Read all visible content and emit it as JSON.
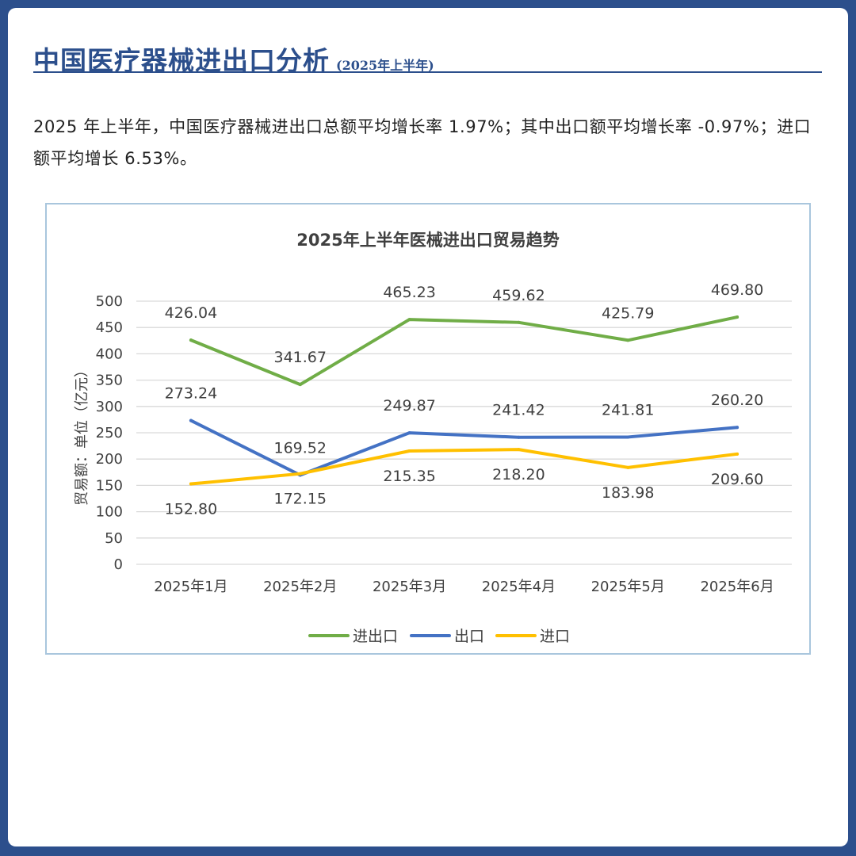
{
  "header": {
    "title": "中国医疗器械进出口分析",
    "subtitle": "(2025年上半年)"
  },
  "summary": {
    "text": "2025 年上半年，中国医疗器械进出口总额平均增长率 1.97%；其中出口额平均增长率 -0.97%；进口额平均增长 6.53%。"
  },
  "chart_data": {
    "type": "line",
    "title": "2025年上半年医械进出口贸易趋势",
    "ylabel": "贸易额：单位（亿元）",
    "xlabel": "",
    "categories": [
      "2025年1月",
      "2025年2月",
      "2025年3月",
      "2025年4月",
      "2025年5月",
      "2025年6月"
    ],
    "ylim": [
      0,
      500
    ],
    "yticks": [
      0,
      50,
      100,
      150,
      200,
      250,
      300,
      350,
      400,
      450,
      500
    ],
    "grid": true,
    "legend_position": "bottom",
    "series": [
      {
        "name": "进出口",
        "color": "#70ad47",
        "values": [
          426.04,
          341.67,
          465.23,
          459.62,
          425.79,
          469.8
        ],
        "labels": [
          "426.04",
          "341.67",
          "465.23",
          "459.62",
          "425.79",
          "469.80"
        ]
      },
      {
        "name": "出口",
        "color": "#4472c4",
        "values": [
          273.24,
          169.52,
          249.87,
          241.42,
          241.81,
          260.2
        ],
        "labels": [
          "273.24",
          "169.52",
          "249.87",
          "241.42",
          "241.81",
          "260.20"
        ]
      },
      {
        "name": "进口",
        "color": "#ffc000",
        "values": [
          152.8,
          172.15,
          215.35,
          218.2,
          183.98,
          209.6
        ],
        "labels": [
          "152.80",
          "172.15",
          "215.35",
          "218.20",
          "183.98",
          "209.60"
        ]
      }
    ]
  }
}
